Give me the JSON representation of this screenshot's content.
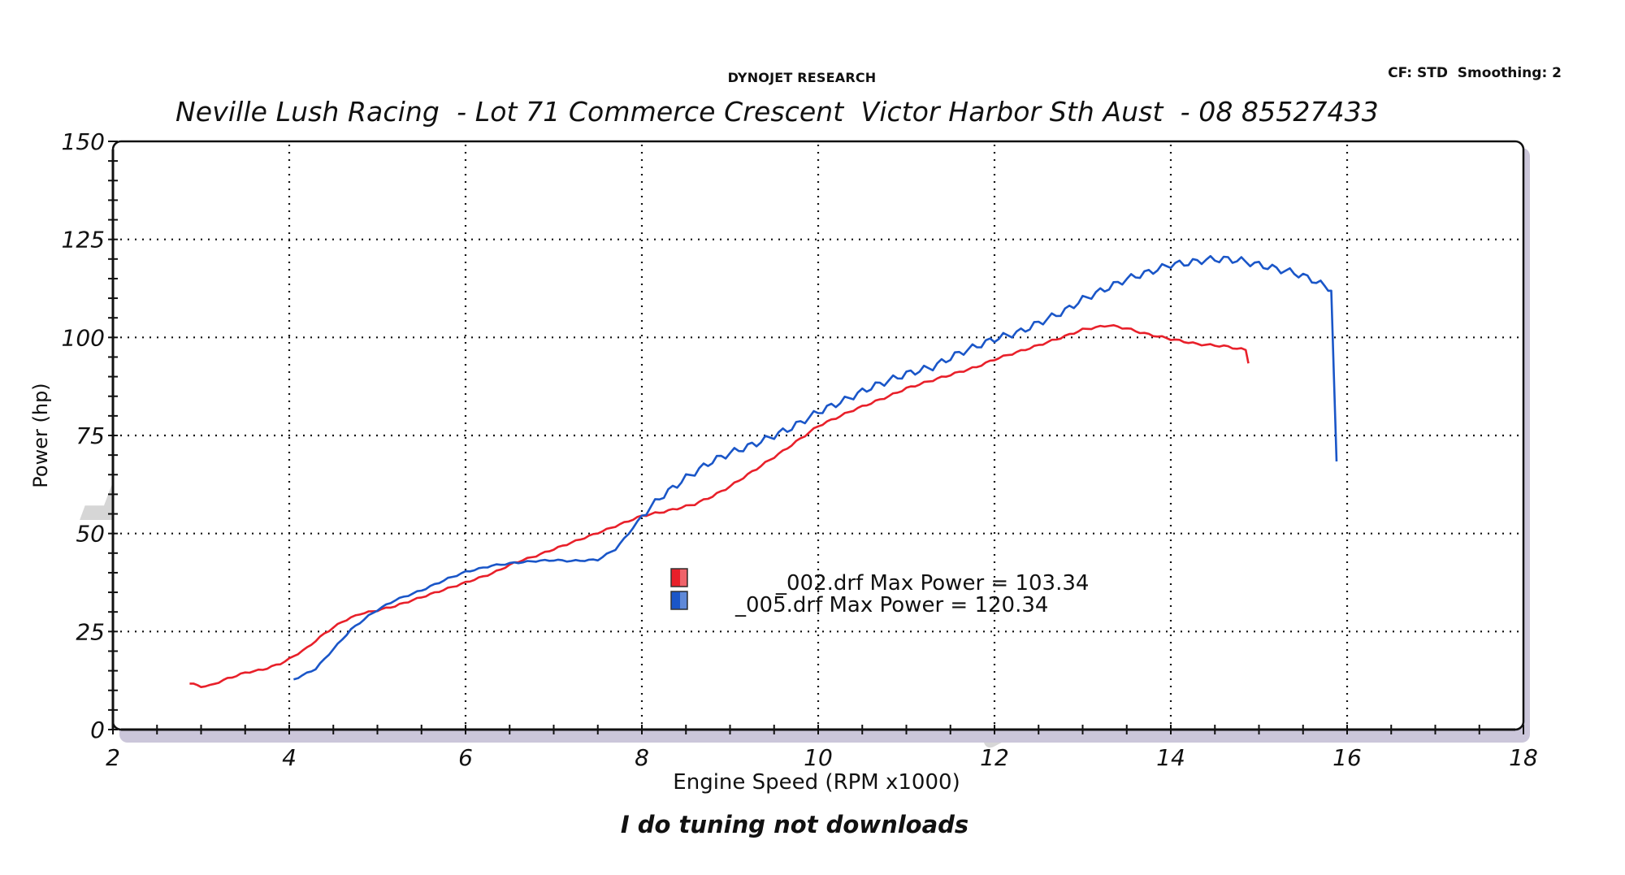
{
  "header": {
    "brand": "DYNOJET RESEARCH",
    "correction": "CF: STD  Smoothing: 2",
    "title": "Neville Lush Racing  - Lot 71 Commerce Crescent  Victor Harbor Sth Aust  - 08 85527433"
  },
  "watermark": {
    "line1": "Neville Lush",
    "line2": "Racing"
  },
  "footer": {
    "tagline": "I do tuning not downloads"
  },
  "colors": {
    "run_002": "#e8202a",
    "run_005": "#1a56c8",
    "watermark": "#d6d6d6",
    "frame_shadow": "#cbc6da",
    "grid": "#111111"
  },
  "legend": [
    {
      "file": "_002.drf",
      "label": "_002.drf Max Power = 103.34",
      "color": "#e8202a"
    },
    {
      "file": "_005.drf",
      "label": "_005.drf Max Power = 120.34",
      "color": "#1a56c8"
    }
  ],
  "chart_data": {
    "type": "line",
    "title": "Neville Lush Racing  - Lot 71 Commerce Crescent  Victor Harbor Sth Aust  - 08 85527433",
    "subtitle": "DYNOJET RESEARCH",
    "xlabel": "Engine Speed (RPM x1000)",
    "ylabel": "Power (hp)",
    "xlim": [
      2,
      18
    ],
    "ylim": [
      0,
      150
    ],
    "xticks": [
      2,
      4,
      6,
      8,
      10,
      12,
      14,
      16,
      18
    ],
    "yticks": [
      0,
      25,
      50,
      75,
      100,
      125,
      150
    ],
    "grid": true,
    "legend_position": "center",
    "annotations": [
      "CF: STD  Smoothing: 2"
    ],
    "series": [
      {
        "name": "_002.drf",
        "max_power": 103.34,
        "color": "#e8202a",
        "x": [
          2.87,
          3.0,
          3.1,
          3.3,
          3.5,
          3.7,
          3.9,
          4.0,
          4.2,
          4.4,
          4.6,
          4.8,
          5.0,
          5.2,
          5.4,
          5.6,
          5.8,
          6.0,
          6.3,
          6.55,
          6.8,
          7.0,
          7.3,
          7.6,
          8.0,
          8.3,
          8.6,
          8.8,
          9.0,
          9.3,
          9.6,
          10.0,
          10.4,
          10.8,
          11.0,
          11.4,
          11.8,
          12.0,
          12.5,
          12.8,
          13.0,
          13.3,
          13.5,
          13.7,
          14.0,
          14.3,
          14.6,
          14.85,
          14.88
        ],
        "y": [
          11.8,
          11.0,
          11.2,
          13.0,
          14.5,
          15.3,
          16.8,
          18.0,
          20.8,
          24.5,
          27.5,
          29.5,
          30.4,
          31.5,
          33.0,
          34.5,
          36.0,
          37.5,
          39.8,
          42.5,
          44.3,
          46.0,
          48.5,
          51.0,
          54.5,
          55.8,
          57.5,
          59.5,
          62.0,
          66.5,
          71.0,
          77.4,
          81.5,
          85.0,
          87.0,
          89.8,
          92.5,
          94.4,
          98.0,
          100.3,
          102.0,
          103.1,
          102.3,
          101.0,
          99.6,
          98.3,
          97.8,
          96.8,
          93.6
        ]
      },
      {
        "name": "_005.drf",
        "max_power": 120.34,
        "color": "#1a56c8",
        "x": [
          4.05,
          4.15,
          4.3,
          4.5,
          4.7,
          4.9,
          5.0,
          5.2,
          5.5,
          5.8,
          6.0,
          6.3,
          6.55,
          6.8,
          7.0,
          7.2,
          7.5,
          7.7,
          7.85,
          8.0,
          8.2,
          8.5,
          8.8,
          9.0,
          9.3,
          9.5,
          9.7,
          10.0,
          10.3,
          10.6,
          11.0,
          11.3,
          11.6,
          12.0,
          12.3,
          12.5,
          12.8,
          13.0,
          13.3,
          13.5,
          13.8,
          14.0,
          14.2,
          14.4,
          14.6,
          14.8,
          15.0,
          15.2,
          15.4,
          15.6,
          15.75,
          15.82,
          15.88
        ],
        "y": [
          12.8,
          13.8,
          15.5,
          20.5,
          25.5,
          29.0,
          30.5,
          33.0,
          35.5,
          38.5,
          40.2,
          41.8,
          42.5,
          43.0,
          43.2,
          43.0,
          43.3,
          46.0,
          50.0,
          54.5,
          59.0,
          64.2,
          68.5,
          70.5,
          73.0,
          75.0,
          77.0,
          81.0,
          84.0,
          87.3,
          90.7,
          92.5,
          96.0,
          99.6,
          101.5,
          103.7,
          106.8,
          109.7,
          112.8,
          114.9,
          117.0,
          118.6,
          119.0,
          119.8,
          120.0,
          119.6,
          118.5,
          117.5,
          116.5,
          114.8,
          113.0,
          112.5,
          67.5
        ]
      }
    ]
  }
}
